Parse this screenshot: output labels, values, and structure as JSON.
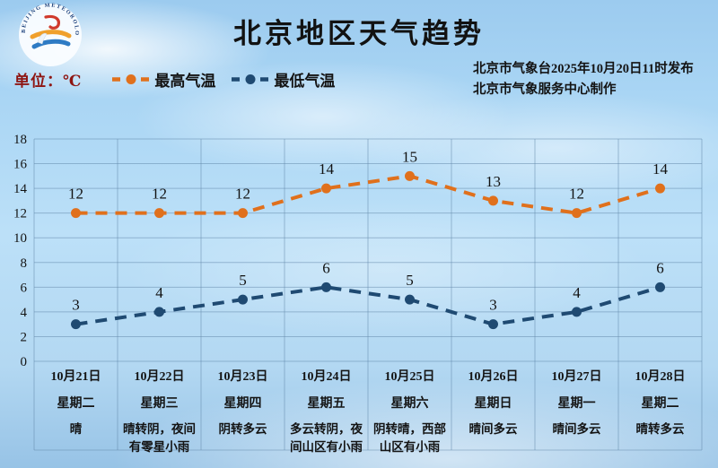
{
  "header": {
    "title": "北京地区天气趋势",
    "unit_label": "单位：℃",
    "legend": [
      {
        "label": "最高气温",
        "color": "#e0701c"
      },
      {
        "label": "最低气温",
        "color": "#1f4a72"
      }
    ],
    "source_line1": "北京市气象台2025年10月20日11时发布",
    "source_line2": "北京市气象服务中心制作",
    "logo_ring_text": "BEIJING METEOROLOGICAL SERVICE"
  },
  "chart_data": {
    "type": "line",
    "title": "北京地区天气趋势",
    "xlabel": "",
    "ylabel": "℃",
    "ylim": [
      0,
      18
    ],
    "yticks": [
      0,
      2,
      4,
      6,
      8,
      10,
      12,
      14,
      16,
      18
    ],
    "grid": true,
    "legend_position": "top-left",
    "line_style": "dashed",
    "categories": [
      "10月21日",
      "10月22日",
      "10月23日",
      "10月24日",
      "10月25日",
      "10月26日",
      "10月27日",
      "10月28日"
    ],
    "series": [
      {
        "name": "最高气温",
        "color": "#e0701c",
        "values": [
          12,
          12,
          12,
          14,
          15,
          13,
          12,
          14
        ]
      },
      {
        "name": "最低气温",
        "color": "#1f4a72",
        "values": [
          3,
          4,
          5,
          6,
          5,
          3,
          4,
          6
        ]
      }
    ],
    "columns": [
      {
        "date": "10月21日",
        "weekday": "星期二",
        "weather": "晴"
      },
      {
        "date": "10月22日",
        "weekday": "星期三",
        "weather": "晴转阴，夜间有零星小雨"
      },
      {
        "date": "10月23日",
        "weekday": "星期四",
        "weather": "阴转多云"
      },
      {
        "date": "10月24日",
        "weekday": "星期五",
        "weather": "多云转阴，夜间山区有小雨"
      },
      {
        "date": "10月25日",
        "weekday": "星期六",
        "weather": "阴转晴，西部山区有小雨"
      },
      {
        "date": "10月26日",
        "weekday": "星期日",
        "weather": "晴间多云"
      },
      {
        "date": "10月27日",
        "weekday": "星期一",
        "weather": "晴间多云"
      },
      {
        "date": "10月28日",
        "weekday": "星期二",
        "weather": "晴转多云"
      }
    ]
  }
}
